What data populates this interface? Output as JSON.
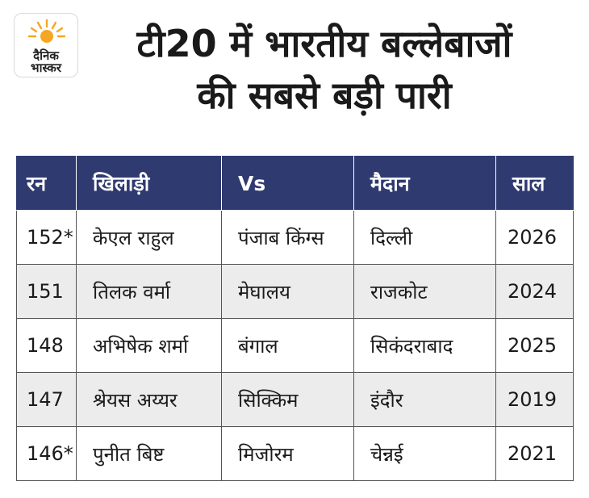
{
  "brand": {
    "name_line1": "दैनिक",
    "name_line2": "भास्कर",
    "sun_color": "#f5a623"
  },
  "title": {
    "line1": "टी20 में भारतीय बल्लेबाजों",
    "line2": "की सबसे बड़ी पारी"
  },
  "table": {
    "header_color": "#2f3a70",
    "columns": [
      "रन",
      "खिलाड़ी",
      "Vs",
      "मैदान",
      "साल"
    ],
    "rows": [
      {
        "runs": "152*",
        "player": "केएल राहुल",
        "vs": "पंजाब किंग्स",
        "venue": "दिल्ली",
        "year": "2026"
      },
      {
        "runs": "151",
        "player": "तिलक वर्मा",
        "vs": "मेघालय",
        "venue": "राजकोट",
        "year": "2024"
      },
      {
        "runs": "148",
        "player": "अभिषेक शर्मा",
        "vs": "बंगाल",
        "venue": "सिकंदराबाद",
        "year": "2025"
      },
      {
        "runs": "147",
        "player": "श्रेयस अय्यर",
        "vs": "सिक्किम",
        "venue": "इंदौर",
        "year": "2019"
      },
      {
        "runs": "146*",
        "player": "पुनीत बिष्ट",
        "vs": "मिजोरम",
        "venue": "चेन्नई",
        "year": "2021"
      }
    ]
  }
}
